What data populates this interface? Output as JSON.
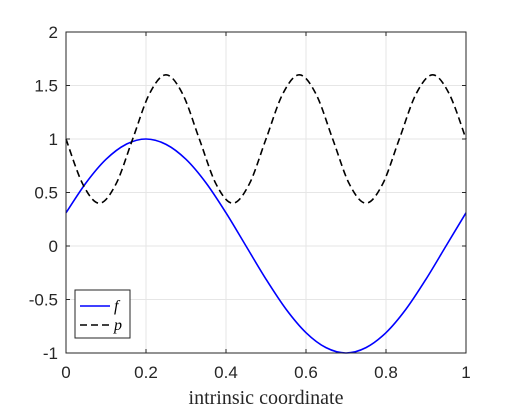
{
  "chart_data": {
    "type": "line",
    "title": "",
    "xlabel": "intrinsic coordinate",
    "ylabel": "",
    "xlim": [
      0,
      1
    ],
    "ylim": [
      -1,
      2
    ],
    "xticks": [
      0,
      0.2,
      0.4,
      0.6,
      0.8,
      1
    ],
    "xtick_labels": [
      "0",
      "0.2",
      "0.4",
      "0.6",
      "0.8",
      "1"
    ],
    "yticks": [
      -1,
      -0.5,
      0,
      0.5,
      1,
      1.5,
      2
    ],
    "ytick_labels": [
      "-1",
      "-0.5",
      "0",
      "0.5",
      "1",
      "1.5",
      "2"
    ],
    "grid": true,
    "legend_position": "bottom-left",
    "series": [
      {
        "name": "f",
        "color": "#0000ff",
        "style": "solid",
        "x": [
          0,
          0.05,
          0.1,
          0.15,
          0.2,
          0.25,
          0.3,
          0.35,
          0.4,
          0.45,
          0.5,
          0.55,
          0.6,
          0.65,
          0.7,
          0.75,
          0.8,
          0.85,
          0.9,
          0.95,
          1
        ],
        "y": [
          0.31,
          0.59,
          0.81,
          0.95,
          1.0,
          0.95,
          0.81,
          0.59,
          0.31,
          0.0,
          -0.31,
          -0.59,
          -0.81,
          -0.95,
          -1.0,
          -0.95,
          -0.81,
          -0.59,
          -0.31,
          0.0,
          0.31
        ]
      },
      {
        "name": "p",
        "color": "#000000",
        "style": "dashed",
        "x": [
          0,
          0.0417,
          0.0833,
          0.125,
          0.1667,
          0.2083,
          0.25,
          0.2917,
          0.3333,
          0.375,
          0.4167,
          0.4583,
          0.5,
          0.5417,
          0.5833,
          0.625,
          0.6667,
          0.7083,
          0.75,
          0.7917,
          0.8333,
          0.875,
          0.9167,
          0.9583,
          1
        ],
        "y": [
          1.0,
          0.58,
          0.4,
          0.58,
          1.0,
          1.42,
          1.6,
          1.42,
          1.0,
          0.58,
          0.4,
          0.58,
          1.0,
          1.42,
          1.6,
          1.42,
          1.0,
          0.58,
          0.4,
          0.58,
          1.0,
          1.42,
          1.6,
          1.42,
          1.0
        ]
      }
    ]
  }
}
